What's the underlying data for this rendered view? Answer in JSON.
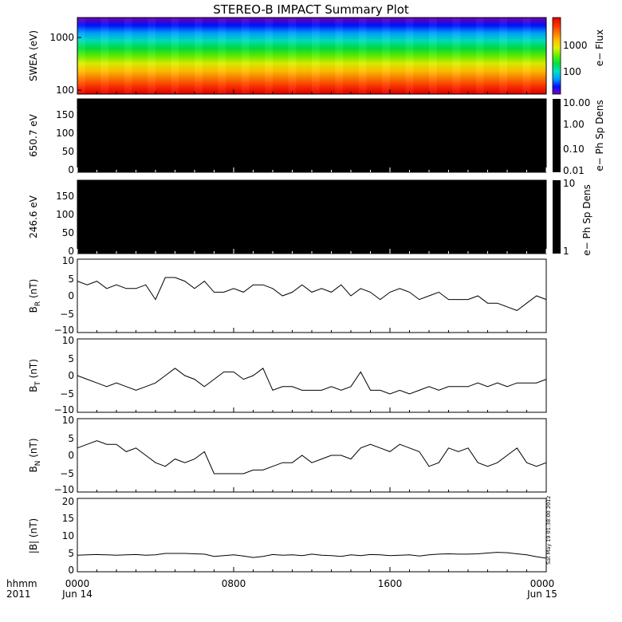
{
  "title": "STEREO-B IMPACT Summary Plot",
  "stamp": "Sat May 19 01:38:00 2012",
  "time_axis": {
    "prefix_top": "hhmm",
    "prefix_bottom": "2011",
    "ticks": [
      {
        "hours": 0,
        "label": "0000",
        "sublabel": "Jun 14"
      },
      {
        "hours": 8,
        "label": "0800",
        "sublabel": ""
      },
      {
        "hours": 16,
        "label": "1600",
        "sublabel": ""
      },
      {
        "hours": 24,
        "label": "0000",
        "sublabel": "Jun 15"
      }
    ],
    "range_hours": [
      0,
      24
    ]
  },
  "panels": {
    "swea": {
      "ylabel": "SWEA (eV)",
      "yticks": [
        "100",
        "1000"
      ],
      "colorbar_label": "e− Flux",
      "colorbar_ticks": [
        "100",
        "1000"
      ],
      "colors": [
        "#7a00b4",
        "#0010ff",
        "#00a0ff",
        "#00e0c0",
        "#00e040",
        "#60f000",
        "#e0f000",
        "#ffc000",
        "#ff7800",
        "#ff3000",
        "#e00000"
      ]
    },
    "pad1": {
      "ylabel": "650.7 eV",
      "yticks": [
        "0",
        "50",
        "100",
        "150"
      ],
      "colorbar_label": "e− Ph Sp Dens",
      "colorbar_ticks": [
        "0.01",
        "0.10",
        "1.00",
        "10.00"
      ]
    },
    "pad2": {
      "ylabel": "246.6 eV",
      "yticks": [
        "0",
        "50",
        "100",
        "150"
      ],
      "colorbar_label": "e− Ph Sp Dens",
      "colorbar_ticks": [
        "1",
        "10"
      ]
    },
    "br": {
      "ylabel_main": "B",
      "ylabel_sub": "R",
      "ylabel_unit": " (nT)",
      "yticks": [
        "−10",
        "−5",
        "0",
        "5",
        "10"
      ]
    },
    "bt": {
      "ylabel_main": "B",
      "ylabel_sub": "T",
      "ylabel_unit": " (nT)",
      "yticks": [
        "−10",
        "−5",
        "0",
        "5",
        "10"
      ]
    },
    "bn": {
      "ylabel_main": "B",
      "ylabel_sub": "N",
      "ylabel_unit": " (nT)",
      "yticks": [
        "−10",
        "−5",
        "0",
        "5",
        "10"
      ]
    },
    "bmag": {
      "ylabel": "|B| (nT)",
      "yticks": [
        "0",
        "5",
        "10",
        "15",
        "20"
      ]
    }
  },
  "chart_data": [
    {
      "type": "heatmap",
      "ylabel": "SWEA (eV)",
      "y_scale": "log",
      "ylim": [
        100,
        2000
      ],
      "zlabel": "e− Flux"
    },
    {
      "type": "heatmap",
      "ylabel": "650.7 eV",
      "ylim": [
        0,
        180
      ],
      "zlabel": "e− Ph Sp Dens",
      "zlim": [
        0.01,
        10
      ]
    },
    {
      "type": "heatmap",
      "ylabel": "246.6 eV",
      "ylim": [
        0,
        180
      ],
      "zlabel": "e− Ph Sp Dens",
      "zlim": [
        1,
        10
      ]
    },
    {
      "type": "line",
      "ylabel": "BR (nT)",
      "ylim": [
        -10,
        10
      ],
      "x": [
        0,
        0.5,
        1,
        1.5,
        2,
        2.5,
        3,
        3.5,
        4,
        4.5,
        5,
        5.5,
        6,
        6.5,
        7,
        7.5,
        8,
        8.5,
        9,
        9.5,
        10,
        10.5,
        11,
        11.5,
        12,
        12.5,
        13,
        13.5,
        14,
        14.5,
        15,
        15.5,
        16,
        16.5,
        17,
        17.5,
        18,
        18.5,
        19,
        19.5,
        20,
        20.5,
        21,
        21.5,
        22,
        22.5,
        23,
        23.5,
        24
      ],
      "y": [
        4,
        3,
        4,
        2,
        3,
        2,
        2,
        3,
        -1,
        5,
        5,
        4,
        2,
        4,
        1,
        1,
        2,
        1,
        3,
        3,
        2,
        0,
        1,
        3,
        1,
        2,
        1,
        3,
        0,
        2,
        1,
        -1,
        1,
        2,
        1,
        -1,
        0,
        1,
        -1,
        -1,
        -1,
        0,
        -2,
        -2,
        -3,
        -4,
        -2,
        0,
        -1
      ]
    },
    {
      "type": "line",
      "ylabel": "BT (nT)",
      "ylim": [
        -10,
        10
      ],
      "x": [
        0,
        0.5,
        1,
        1.5,
        2,
        2.5,
        3,
        3.5,
        4,
        4.5,
        5,
        5.5,
        6,
        6.5,
        7,
        7.5,
        8,
        8.5,
        9,
        9.5,
        10,
        10.5,
        11,
        11.5,
        12,
        12.5,
        13,
        13.5,
        14,
        14.5,
        15,
        15.5,
        16,
        16.5,
        17,
        17.5,
        18,
        18.5,
        19,
        19.5,
        20,
        20.5,
        21,
        21.5,
        22,
        22.5,
        23,
        23.5,
        24
      ],
      "y": [
        0,
        -1,
        -2,
        -3,
        -2,
        -3,
        -4,
        -3,
        -2,
        0,
        2,
        0,
        -1,
        -3,
        -1,
        1,
        1,
        -1,
        0,
        2,
        -4,
        -3,
        -3,
        -4,
        -4,
        -4,
        -3,
        -4,
        -3,
        1,
        -4,
        -4,
        -5,
        -4,
        -5,
        -4,
        -3,
        -4,
        -3,
        -3,
        -3,
        -2,
        -3,
        -2,
        -3,
        -2,
        -2,
        -2,
        -1
      ]
    },
    {
      "type": "line",
      "ylabel": "BN (nT)",
      "ylim": [
        -10,
        10
      ],
      "x": [
        0,
        0.5,
        1,
        1.5,
        2,
        2.5,
        3,
        3.5,
        4,
        4.5,
        5,
        5.5,
        6,
        6.5,
        7,
        7.5,
        8,
        8.5,
        9,
        9.5,
        10,
        10.5,
        11,
        11.5,
        12,
        12.5,
        13,
        13.5,
        14,
        14.5,
        15,
        15.5,
        16,
        16.5,
        17,
        17.5,
        18,
        18.5,
        19,
        19.5,
        20,
        20.5,
        21,
        21.5,
        22,
        22.5,
        23,
        23.5,
        24
      ],
      "y": [
        2,
        3,
        4,
        3,
        3,
        1,
        2,
        0,
        -2,
        -3,
        -1,
        -2,
        -1,
        1,
        -5,
        -5,
        -5,
        -5,
        -4,
        -4,
        -3,
        -2,
        -2,
        0,
        -2,
        -1,
        0,
        0,
        -1,
        2,
        3,
        2,
        1,
        3,
        2,
        1,
        -3,
        -2,
        2,
        1,
        2,
        -2,
        -3,
        -2,
        0,
        2,
        -2,
        -3,
        -2
      ]
    },
    {
      "type": "line",
      "ylabel": "|B| (nT)",
      "ylim": [
        0,
        20
      ],
      "x": [
        0,
        0.5,
        1,
        1.5,
        2,
        2.5,
        3,
        3.5,
        4,
        4.5,
        5,
        5.5,
        6,
        6.5,
        7,
        7.5,
        8,
        8.5,
        9,
        9.5,
        10,
        10.5,
        11,
        11.5,
        12,
        12.5,
        13,
        13.5,
        14,
        14.5,
        15,
        15.5,
        16,
        16.5,
        17,
        17.5,
        18,
        18.5,
        19,
        19.5,
        20,
        20.5,
        21,
        21.5,
        22,
        22.5,
        23,
        23.5,
        24
      ],
      "y": [
        4.5,
        4.6,
        4.7,
        4.6,
        4.5,
        4.6,
        4.7,
        4.5,
        4.6,
        5,
        5,
        5,
        4.9,
        4.8,
        4.2,
        4.4,
        4.6,
        4.3,
        3.9,
        4.2,
        4.7,
        4.5,
        4.6,
        4.4,
        4.8,
        4.5,
        4.4,
        4.2,
        4.6,
        4.4,
        4.7,
        4.6,
        4.4,
        4.5,
        4.6,
        4.3,
        4.6,
        4.8,
        4.9,
        4.8,
        4.8,
        4.9,
        5.1,
        5.3,
        5.2,
        4.9,
        4.6,
        4.1,
        3.7
      ]
    }
  ]
}
